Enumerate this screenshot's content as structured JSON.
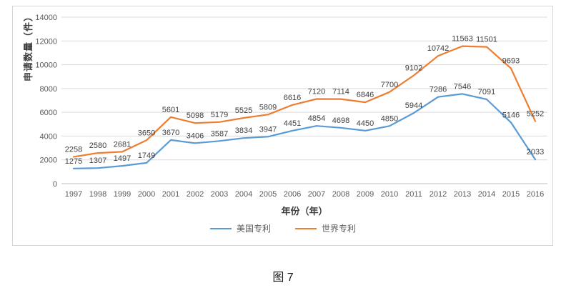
{
  "figure": {
    "caption": "图 7"
  },
  "chart_data": {
    "type": "line",
    "title": "",
    "xlabel": "年份（年）",
    "ylabel": "申请数量（件）",
    "x": [
      "1997",
      "1998",
      "1999",
      "2000",
      "2001",
      "2002",
      "2003",
      "2004",
      "2005",
      "2006",
      "2007",
      "2008",
      "2009",
      "2010",
      "2011",
      "2012",
      "2013",
      "2014",
      "2015",
      "2016"
    ],
    "series": [
      {
        "name": "美国专利",
        "color": "#5b9bd5",
        "values": [
          1275,
          1307,
          1497,
          1749,
          3670,
          3406,
          3587,
          3834,
          3947,
          4451,
          4854,
          4698,
          4450,
          4850,
          5944,
          7286,
          7546,
          7091,
          5146,
          2033
        ]
      },
      {
        "name": "世界专利",
        "color": "#ed7d31",
        "values": [
          2258,
          2580,
          2681,
          3650,
          5601,
          5098,
          5179,
          5525,
          5809,
          6616,
          7120,
          7114,
          6846,
          7700,
          9102,
          10742,
          11563,
          11501,
          9693,
          5252
        ]
      }
    ],
    "ylim": [
      0,
      14000
    ],
    "ytick_step": 2000,
    "grid": true,
    "data_labels": true,
    "legend_position": "bottom"
  },
  "style_colors": {
    "gridline": "#d9d9d9",
    "axis_line": "#bfbfbf",
    "tick_label": "#595959",
    "data_label": "#3f3f3f"
  }
}
